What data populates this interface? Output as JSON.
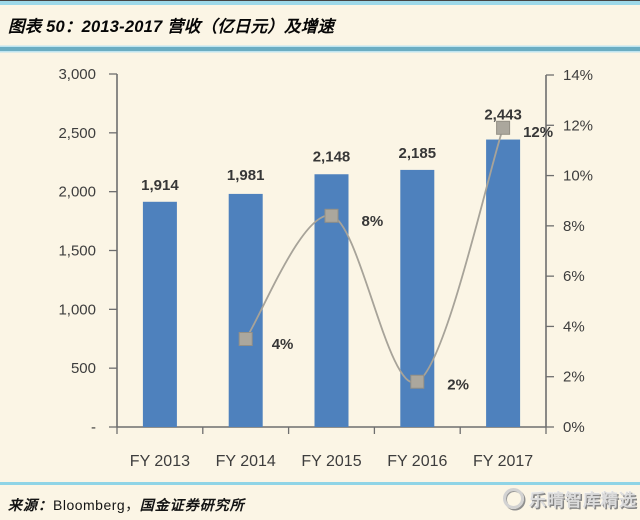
{
  "header": {
    "title": "图表 50：2013-2017 营收（亿日元）及增速"
  },
  "chart_data": {
    "type": "bar+line combo",
    "categories": [
      "FY 2013",
      "FY 2014",
      "FY 2015",
      "FY 2016",
      "FY 2017"
    ],
    "series": [
      {
        "name": "营收（亿日元）",
        "type": "bar",
        "axis": "left",
        "values": [
          1914,
          1981,
          2148,
          2185,
          2443
        ],
        "labels": [
          "1,914",
          "1,981",
          "2,148",
          "2,185",
          "2,443"
        ],
        "color": "#4e81bd"
      },
      {
        "name": "增速",
        "type": "line",
        "axis": "right",
        "values": [
          null,
          3.5,
          8.4,
          1.8,
          11.9
        ],
        "labels": [
          null,
          "4%",
          "8%",
          "2%",
          "12%"
        ],
        "color": "#a7a399",
        "marker": "square",
        "marker_color": "#aba79d"
      }
    ],
    "left_axis": {
      "min": 0,
      "max": 3000,
      "tick_labels": [
        "3,000",
        "2,500",
        "2,000",
        "1,500",
        "1,000",
        "500",
        "-"
      ]
    },
    "right_axis": {
      "min": 0,
      "max": 14,
      "tick_labels": [
        "14%",
        "12%",
        "10%",
        "8%",
        "6%",
        "4%",
        "2%",
        "0%"
      ]
    },
    "grid": false,
    "legend": "none",
    "title": "2013-2017 营收（亿日元）及增速"
  },
  "footer": {
    "source_prefix": "来源：",
    "source_name": "Bloomberg，",
    "source_suffix": "国金证券研究所",
    "watermark": "乐晴智库精选"
  },
  "colors": {
    "background": "#fbf5e5",
    "bar": "#4e81bd",
    "line": "#a7a399",
    "axis": "#6e6e6e",
    "tick_text": "#3d3d3d",
    "label_text": "#373737",
    "header_line": "#6badc2",
    "footer_line": "#8fd4e6"
  }
}
